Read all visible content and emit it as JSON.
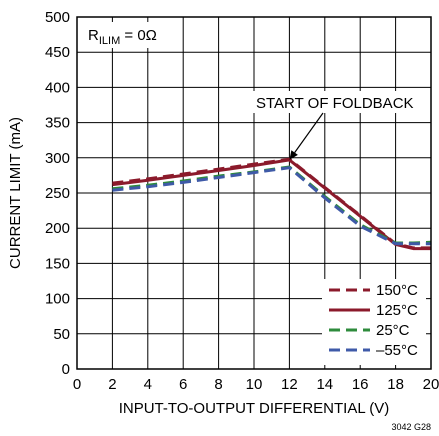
{
  "chart_data": {
    "type": "line",
    "xlabel": "INPUT-TO-OUTPUT DIFFERENTIAL (V)",
    "ylabel": "CURRENT LIMIT (mA)",
    "xlim": [
      0,
      20
    ],
    "ylim": [
      0,
      500
    ],
    "x_ticks": [
      "0",
      "2",
      "4",
      "6",
      "8",
      "10",
      "12",
      "14",
      "16",
      "18",
      "20"
    ],
    "y_ticks": [
      "0",
      "50",
      "100",
      "150",
      "200",
      "250",
      "300",
      "350",
      "400",
      "450",
      "500"
    ],
    "grid": true,
    "legend_position": "bottom-right",
    "condition": {
      "prefix": "R",
      "subscript": "ILIM",
      "suffix": " = 0Ω"
    },
    "annotation": {
      "text": "START OF FOLDBACK",
      "target": [
        12,
        297
      ]
    },
    "figure_code": "3042 G28",
    "series": [
      {
        "name": "150°C",
        "color": "#8b1a2b",
        "dash": "dash",
        "x": [
          2,
          4,
          6,
          8,
          10,
          12,
          14,
          16,
          18,
          19,
          20
        ],
        "y": [
          264,
          270,
          277,
          284,
          291,
          298,
          258,
          218,
          178,
          172,
          172
        ]
      },
      {
        "name": "125°C",
        "color": "#8b1a2b",
        "dash": "solid",
        "x": [
          2,
          4,
          6,
          8,
          10,
          12,
          14,
          16,
          18,
          19,
          20
        ],
        "y": [
          262,
          268,
          275,
          282,
          289,
          297,
          257,
          217,
          177,
          171,
          171
        ]
      },
      {
        "name": "25°C",
        "color": "#2e8b3c",
        "dash": "dash",
        "x": [
          2,
          4,
          6,
          8,
          10,
          12,
          14,
          16,
          18,
          19,
          20
        ],
        "y": [
          256,
          261,
          267,
          274,
          280,
          287,
          245,
          205,
          179,
          179,
          180
        ]
      },
      {
        "name": "–55°C",
        "color": "#3f5aa8",
        "dash": "dash",
        "x": [
          2,
          4,
          6,
          8,
          10,
          12,
          14,
          16,
          18,
          19,
          20
        ],
        "y": [
          254,
          259,
          265,
          272,
          279,
          286,
          243,
          203,
          178,
          178,
          178
        ]
      }
    ]
  }
}
